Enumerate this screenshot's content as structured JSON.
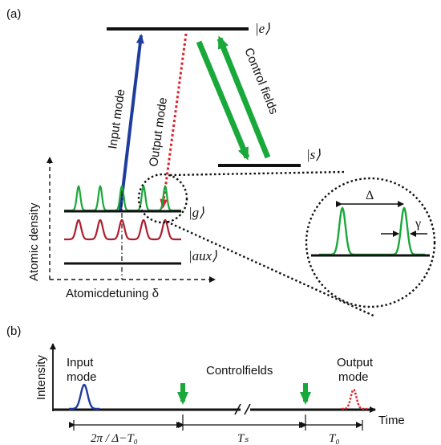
{
  "panel_a": {
    "label": "(a)",
    "level_e": "|e⟩",
    "level_s": "|s⟩",
    "level_g": "|g⟩",
    "level_aux": "|aux⟩",
    "input_mode": "Input mode",
    "output_mode": "Output mode",
    "control_fields": "Control fields",
    "y_axis_label": "Atomic density",
    "x_axis_label": "Atomicdetuning δ",
    "zoom_delta": "Δ",
    "zoom_gamma": "γ"
  },
  "panel_b": {
    "label": "(b)",
    "y_axis_label": "Intensity",
    "input_mode_line1": "Input",
    "input_mode_line2": "mode",
    "control_fields": "Controlfields",
    "output_mode_line1": "Output",
    "output_mode_line2": "mode",
    "time_label": "Time",
    "interval_1": "2π / Δ−T₀",
    "interval_2": "Tₛ",
    "interval_3": "T₀"
  },
  "colors": {
    "input": "#1f3d9e",
    "output": "#e0202a",
    "control": "#19a83a",
    "comb_g": "#19a83a",
    "comb_aux": "#b01c2e",
    "level": "#111111"
  }
}
